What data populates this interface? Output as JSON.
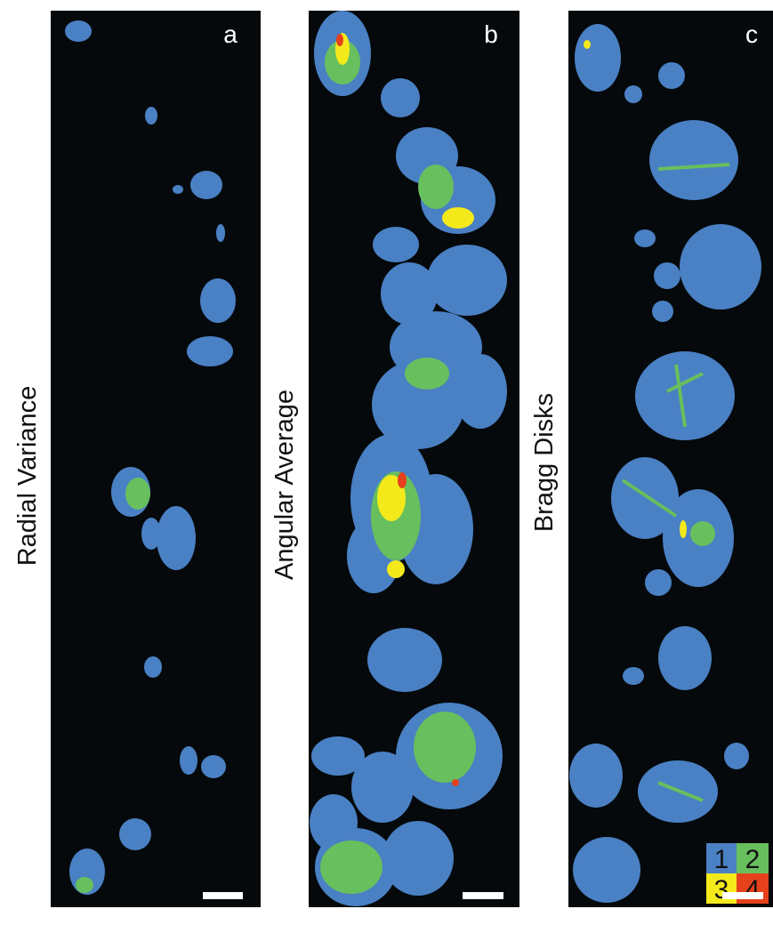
{
  "panels": [
    {
      "letter": "a",
      "title": "Radial Variance"
    },
    {
      "letter": "b",
      "title": "Angular Average"
    },
    {
      "letter": "c",
      "title": "Bragg Disks"
    }
  ],
  "legend": [
    "1",
    "2",
    "3",
    "4"
  ]
}
